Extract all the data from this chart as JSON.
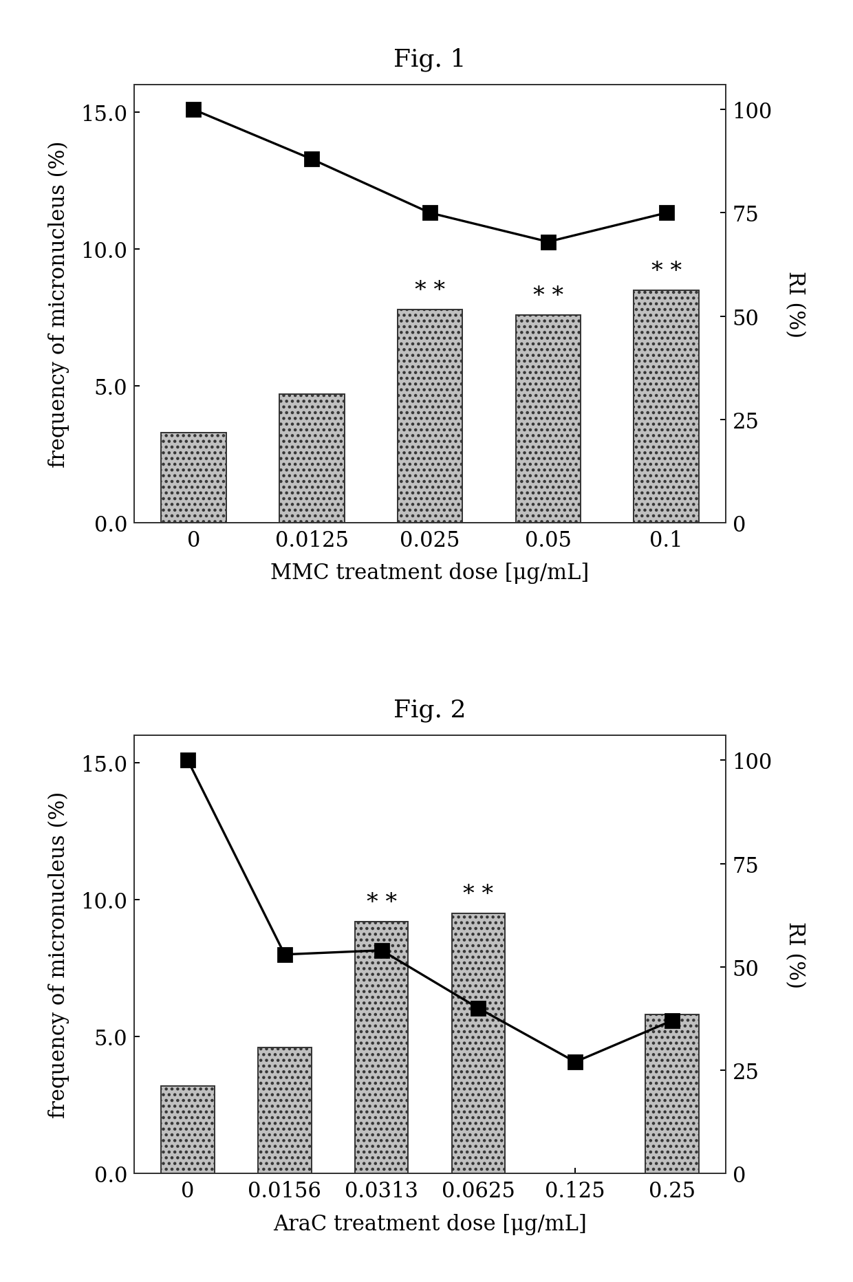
{
  "fig1": {
    "title": "Fig. 1",
    "categories": [
      "0",
      "0.0125",
      "0.025",
      "0.05",
      "0.1"
    ],
    "bar_values": [
      3.3,
      4.7,
      7.8,
      7.6,
      8.5
    ],
    "line_values": [
      100,
      88,
      75,
      68,
      75
    ],
    "sig_bars": [
      2,
      3,
      4
    ],
    "xlabel": "MMC treatment dose [μg/mL]",
    "ylabel_left": "frequency of micronucleus (%)",
    "ylabel_right": "RI (%)",
    "ylim_left": [
      0,
      16
    ],
    "ylim_right": [
      0,
      106
    ],
    "yticks_left": [
      0.0,
      5.0,
      10.0,
      15.0
    ],
    "ytick_labels_left": [
      "0.0",
      "5.0",
      "10.0",
      "15.0"
    ],
    "yticks_right": [
      0,
      25,
      50,
      75,
      100
    ],
    "bar_color": "#c0c0c0",
    "line_color": "#000000",
    "bar_width": 0.55
  },
  "fig2": {
    "title": "Fig. 2",
    "categories": [
      "0",
      "0.0156",
      "0.0313",
      "0.0625",
      "0.125",
      "0.25"
    ],
    "bar_values": [
      3.2,
      4.6,
      9.2,
      9.5,
      0.0,
      5.8
    ],
    "line_values": [
      100,
      53,
      54,
      40,
      27,
      37
    ],
    "sig_bars": [
      2,
      3
    ],
    "xlabel": "AraC treatment dose [μg/mL]",
    "ylabel_left": "frequency of micronucleus (%)",
    "ylabel_right": "RI (%)",
    "ylim_left": [
      0,
      16
    ],
    "ylim_right": [
      0,
      106
    ],
    "yticks_left": [
      0.0,
      5.0,
      10.0,
      15.0
    ],
    "ytick_labels_left": [
      "0.0",
      "5.0",
      "10.0",
      "15.0"
    ],
    "yticks_right": [
      0,
      25,
      50,
      75,
      100
    ],
    "bar_color": "#c0c0c0",
    "line_color": "#000000",
    "bar_width": 0.55
  },
  "bg_color": "#ffffff",
  "title_fontsize": 13,
  "label_fontsize": 11,
  "tick_fontsize": 11,
  "sig_fontsize": 12,
  "figure_width": 6.2,
  "figure_height": 9.325,
  "dpi": 200
}
